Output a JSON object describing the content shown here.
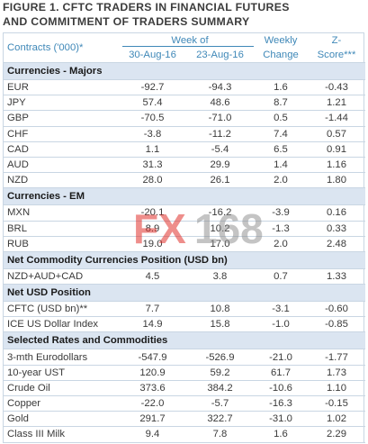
{
  "title_lines": [
    "FIGURE 1. CFTC TRADERS IN FINANCIAL FUTURES",
    "AND COMMITMENT OF TRADERS SUMMARY"
  ],
  "header": {
    "contracts": "Contracts ('000)*",
    "week_of": "Week of",
    "date1": "30-Aug-16",
    "date2": "23-Aug-16",
    "weekly_line1": "Weekly",
    "weekly_line2": "Change",
    "z_line1": "Z-",
    "z_line2": "Score***"
  },
  "sections": [
    {
      "title": "Currencies - Majors",
      "rows": [
        {
          "label": "EUR",
          "v1": "-92.7",
          "v2": "-94.3",
          "chg": "1.6",
          "z": "-0.43"
        },
        {
          "label": "JPY",
          "v1": "57.4",
          "v2": "48.6",
          "chg": "8.7",
          "z": "1.21"
        },
        {
          "label": "GBP",
          "v1": "-70.5",
          "v2": "-71.0",
          "chg": "0.5",
          "z": "-1.44"
        },
        {
          "label": "CHF",
          "v1": "-3.8",
          "v2": "-11.2",
          "chg": "7.4",
          "z": "0.57"
        },
        {
          "label": "CAD",
          "v1": "1.1",
          "v2": "-5.4",
          "chg": "6.5",
          "z": "0.91"
        },
        {
          "label": "AUD",
          "v1": "31.3",
          "v2": "29.9",
          "chg": "1.4",
          "z": "1.16"
        },
        {
          "label": "NZD",
          "v1": "28.0",
          "v2": "26.1",
          "chg": "2.0",
          "z": "1.80"
        }
      ]
    },
    {
      "title": "Currencies - EM",
      "rows": [
        {
          "label": "MXN",
          "v1": "-20.1",
          "v2": "-16.2",
          "chg": "-3.9",
          "z": "0.16"
        },
        {
          "label": "BRL",
          "v1": "8.9",
          "v2": "10.2",
          "chg": "-1.3",
          "z": "0.33"
        },
        {
          "label": "RUB",
          "v1": "19.0",
          "v2": "17.0",
          "chg": "2.0",
          "z": "2.48"
        }
      ]
    },
    {
      "title": "Net Commodity Currencies Position (USD bn)",
      "rows": [
        {
          "label": "NZD+AUD+CAD",
          "v1": "4.5",
          "v2": "3.8",
          "chg": "0.7",
          "z": "1.33"
        }
      ]
    },
    {
      "title": "Net USD Position",
      "rows": [
        {
          "label": "CFTC (USD bn)**",
          "v1": "7.7",
          "v2": "10.8",
          "chg": "-3.1",
          "z": "-0.60"
        },
        {
          "label": "ICE US Dollar Index",
          "v1": "14.9",
          "v2": "15.8",
          "chg": "-1.0",
          "z": "-0.85"
        }
      ]
    },
    {
      "title": "Selected Rates and Commodities",
      "rows": [
        {
          "label": "3-mth Eurodollars",
          "v1": "-547.9",
          "v2": "-526.9",
          "chg": "-21.0",
          "z": "-1.77"
        },
        {
          "label": "10-year UST",
          "v1": "120.9",
          "v2": "59.2",
          "chg": "61.7",
          "z": "1.73"
        },
        {
          "label": "Crude Oil",
          "v1": "373.6",
          "v2": "384.2",
          "chg": "-10.6",
          "z": "1.10"
        },
        {
          "label": "Copper",
          "v1": "-22.0",
          "v2": "-5.7",
          "chg": "-16.3",
          "z": "-0.15"
        },
        {
          "label": "Gold",
          "v1": "291.7",
          "v2": "322.7",
          "chg": "-31.0",
          "z": "1.02"
        },
        {
          "label": "Class III Milk",
          "v1": "9.4",
          "v2": "7.8",
          "chg": "1.6",
          "z": "2.29"
        }
      ]
    }
  ],
  "watermark": {
    "part1": "FX",
    "part2": "168",
    "color1": "#e0312b",
    "color2": "#8a8a8a"
  },
  "colors": {
    "header_text": "#3f88b8",
    "section_bg": "#dbe5f1",
    "border": "#c9d6e3"
  }
}
